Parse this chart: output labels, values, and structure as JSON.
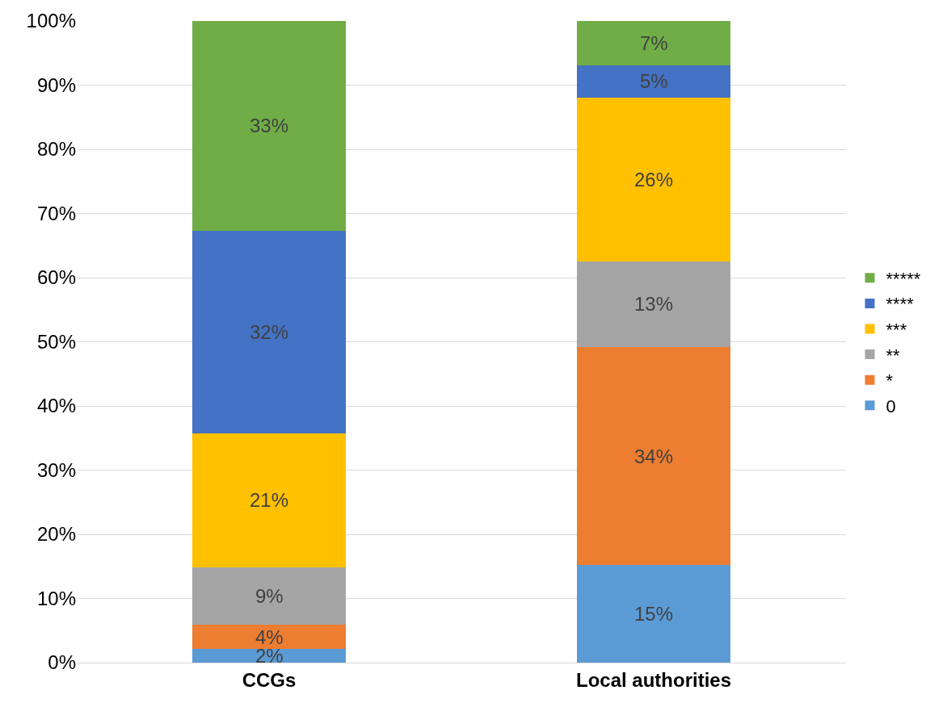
{
  "chart_data": {
    "type": "bar",
    "stacked": true,
    "categories": [
      "CCGs",
      "Local authorities"
    ],
    "series": [
      {
        "name": "0",
        "color": "#5b9bd5",
        "values": [
          2.1,
          15.2
        ],
        "value_labels": [
          "2%",
          "15%"
        ]
      },
      {
        "name": "*",
        "color": "#ed7d31",
        "values": [
          3.8,
          34.0
        ],
        "value_labels": [
          "4%",
          "34%"
        ]
      },
      {
        "name": "**",
        "color": "#a5a5a5",
        "values": [
          9.0,
          13.3
        ],
        "value_labels": [
          "9%",
          "13%"
        ]
      },
      {
        "name": "***",
        "color": "#ffc000",
        "values": [
          20.8,
          25.6
        ],
        "value_labels": [
          "21%",
          "26%"
        ]
      },
      {
        "name": "****",
        "color": "#4472c4",
        "values": [
          31.6,
          5.0
        ],
        "value_labels": [
          "32%",
          "5%"
        ]
      },
      {
        "name": "*****",
        "color": "#70ad47",
        "values": [
          32.7,
          6.9
        ],
        "value_labels": [
          "33%",
          "7%"
        ]
      }
    ],
    "ylim": [
      0,
      100
    ],
    "yticks": [
      {
        "value": 0,
        "label": "0%"
      },
      {
        "value": 10,
        "label": "10%"
      },
      {
        "value": 20,
        "label": "20%"
      },
      {
        "value": 30,
        "label": "30%"
      },
      {
        "value": 40,
        "label": "40%"
      },
      {
        "value": 50,
        "label": "50%"
      },
      {
        "value": 60,
        "label": "60%"
      },
      {
        "value": 70,
        "label": "70%"
      },
      {
        "value": 80,
        "label": "80%"
      },
      {
        "value": 90,
        "label": "90%"
      },
      {
        "value": 100,
        "label": "100%"
      }
    ],
    "grid": "y",
    "legend": "right"
  }
}
